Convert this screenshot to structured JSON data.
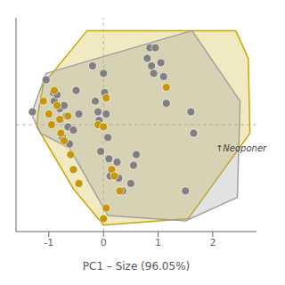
{
  "chart_data": {
    "type": "scatter",
    "xlabel": "PC1 – Size  (96.05%)",
    "xlim": [
      -1.6,
      2.8
    ],
    "xticks": [
      -1,
      0,
      1,
      2
    ],
    "ylim": [
      -1.0,
      1.0
    ],
    "tick_labels": "x",
    "reference_lines": [
      {
        "axis": "x",
        "value": 0.0,
        "color": "#BBBBBB",
        "line_style": "dashed"
      },
      {
        "axis": "y",
        "value": 0.0,
        "color": "#BBBBBB",
        "line_style": "dashed"
      }
    ],
    "annotations": [
      {
        "text": "↑Neoponer",
        "x": 2.05,
        "y": -0.22
      }
    ],
    "series": [
      {
        "type": "polygon",
        "color": "#C8A800",
        "values": [
          [
            -1.2,
            0.1
          ],
          [
            -1.1,
            0.38
          ],
          [
            -0.3,
            0.88
          ],
          [
            2.42,
            0.88
          ],
          [
            2.65,
            0.62
          ],
          [
            2.68,
            -0.08
          ],
          [
            1.55,
            -0.88
          ],
          [
            0.0,
            -0.94
          ],
          [
            -0.55,
            -0.6
          ],
          [
            -1.22,
            -0.02
          ]
        ]
      },
      {
        "type": "polygon",
        "color": "#A0A0A0",
        "values": [
          [
            -1.32,
            0.1
          ],
          [
            -1.05,
            0.48
          ],
          [
            1.62,
            0.88
          ],
          [
            2.5,
            0.22
          ],
          [
            2.45,
            -0.68
          ],
          [
            1.5,
            -0.9
          ],
          [
            0.08,
            -0.85
          ],
          [
            -0.62,
            -0.22
          ],
          [
            -1.15,
            -0.08
          ]
        ]
      },
      {
        "type": "scatter",
        "color": "#808080",
        "values": [
          [
            -1.3,
            0.12
          ],
          [
            -1.05,
            0.42
          ],
          [
            -0.92,
            0.3
          ],
          [
            -0.9,
            0.22
          ],
          [
            -0.85,
            0.28
          ],
          [
            -0.8,
            0.15
          ],
          [
            -0.78,
            0.05
          ],
          [
            -0.75,
            -0.12
          ],
          [
            -0.72,
            0.18
          ],
          [
            -0.68,
            0.08
          ],
          [
            -0.65,
            -0.02
          ],
          [
            -0.62,
            -0.18
          ],
          [
            -0.55,
            -0.05
          ],
          [
            -0.5,
            0.32
          ],
          [
            -0.45,
            0.1
          ],
          [
            -0.2,
            0.55
          ],
          [
            -0.15,
            0.22
          ],
          [
            -0.1,
            0.12
          ],
          [
            -0.08,
            0.04
          ],
          [
            -0.05,
            -0.25
          ],
          [
            0.0,
            0.48
          ],
          [
            0.02,
            0.3
          ],
          [
            0.05,
            0.1
          ],
          [
            0.08,
            -0.12
          ],
          [
            0.1,
            -0.32
          ],
          [
            0.12,
            -0.48
          ],
          [
            0.25,
            -0.35
          ],
          [
            0.28,
            -0.5
          ],
          [
            0.35,
            -0.62
          ],
          [
            0.5,
            -0.55
          ],
          [
            0.55,
            -0.38
          ],
          [
            0.6,
            -0.28
          ],
          [
            0.8,
            0.62
          ],
          [
            0.85,
            0.72
          ],
          [
            0.88,
            0.55
          ],
          [
            0.92,
            0.48
          ],
          [
            0.95,
            0.72
          ],
          [
            1.05,
            0.58
          ],
          [
            1.1,
            0.45
          ],
          [
            1.15,
            0.2
          ],
          [
            1.5,
            -0.62
          ],
          [
            1.6,
            0.12
          ],
          [
            1.65,
            -0.08
          ]
        ]
      },
      {
        "type": "scatter",
        "color": "#C8960C",
        "values": [
          [
            -1.1,
            0.22
          ],
          [
            -1.0,
            0.1
          ],
          [
            -0.95,
            0.0
          ],
          [
            -0.9,
            0.32
          ],
          [
            -0.85,
            0.18
          ],
          [
            -0.8,
            0.05
          ],
          [
            -0.78,
            -0.08
          ],
          [
            -0.72,
            -0.15
          ],
          [
            -0.65,
            0.08
          ],
          [
            -0.6,
            -0.28
          ],
          [
            -0.55,
            -0.42
          ],
          [
            -0.45,
            -0.55
          ],
          [
            -0.1,
            0.0
          ],
          [
            0.0,
            -0.02
          ],
          [
            0.05,
            0.25
          ],
          [
            0.15,
            -0.42
          ],
          [
            0.2,
            -0.48
          ],
          [
            0.3,
            -0.62
          ],
          [
            0.0,
            -0.88
          ],
          [
            0.05,
            -0.78
          ],
          [
            1.15,
            0.35
          ]
        ]
      }
    ]
  }
}
